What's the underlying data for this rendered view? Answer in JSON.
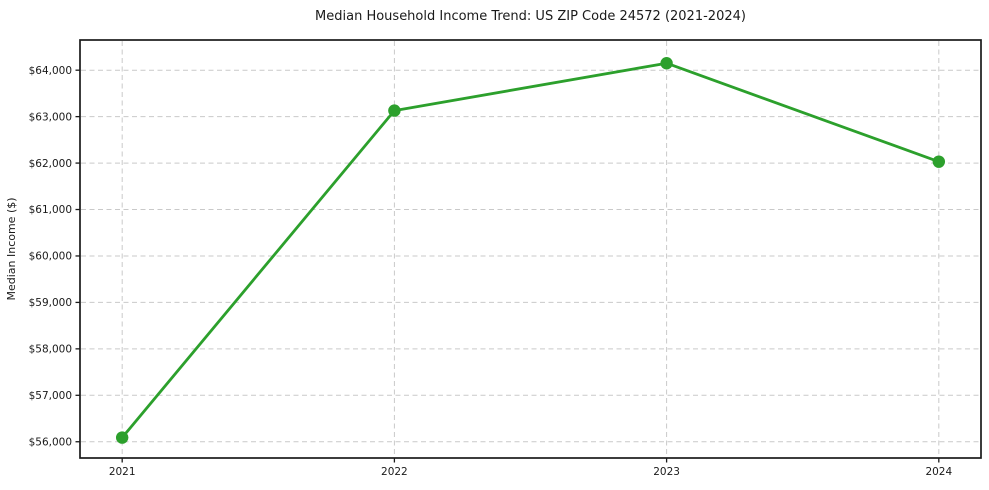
{
  "chart_data": {
    "type": "line",
    "title": "Median Household Income Trend: US ZIP Code 24572 (2021-2024)",
    "xlabel": "",
    "ylabel": "Median Income ($)",
    "x": [
      2021,
      2022,
      2023,
      2024
    ],
    "series": [
      {
        "name": "Median Household Income",
        "values": [
          56090,
          63130,
          64150,
          62030
        ]
      }
    ],
    "xticks": [
      {
        "value": 2021,
        "label": "2021"
      },
      {
        "value": 2022,
        "label": "2022"
      },
      {
        "value": 2023,
        "label": "2023"
      },
      {
        "value": 2024,
        "label": "2024"
      }
    ],
    "yticks": [
      {
        "value": 56000,
        "label": "$56,000"
      },
      {
        "value": 57000,
        "label": "$57,000"
      },
      {
        "value": 58000,
        "label": "$58,000"
      },
      {
        "value": 59000,
        "label": "$59,000"
      },
      {
        "value": 60000,
        "label": "$60,000"
      },
      {
        "value": 61000,
        "label": "$61,000"
      },
      {
        "value": 62000,
        "label": "$62,000"
      },
      {
        "value": 63000,
        "label": "$63,000"
      },
      {
        "value": 64000,
        "label": "$64,000"
      }
    ],
    "xlim": [
      2020.845,
      2024.155
    ],
    "ylim": [
      55650,
      64650
    ],
    "line_color": "#2ca02c",
    "marker": "circle",
    "marker_color": "#2ca02c",
    "grid": "both",
    "grid_style": "dashed",
    "grid_color": "#c9c9c9",
    "border_color": "#1a1a1a",
    "background_color": "#ffffff",
    "legend": "none"
  }
}
